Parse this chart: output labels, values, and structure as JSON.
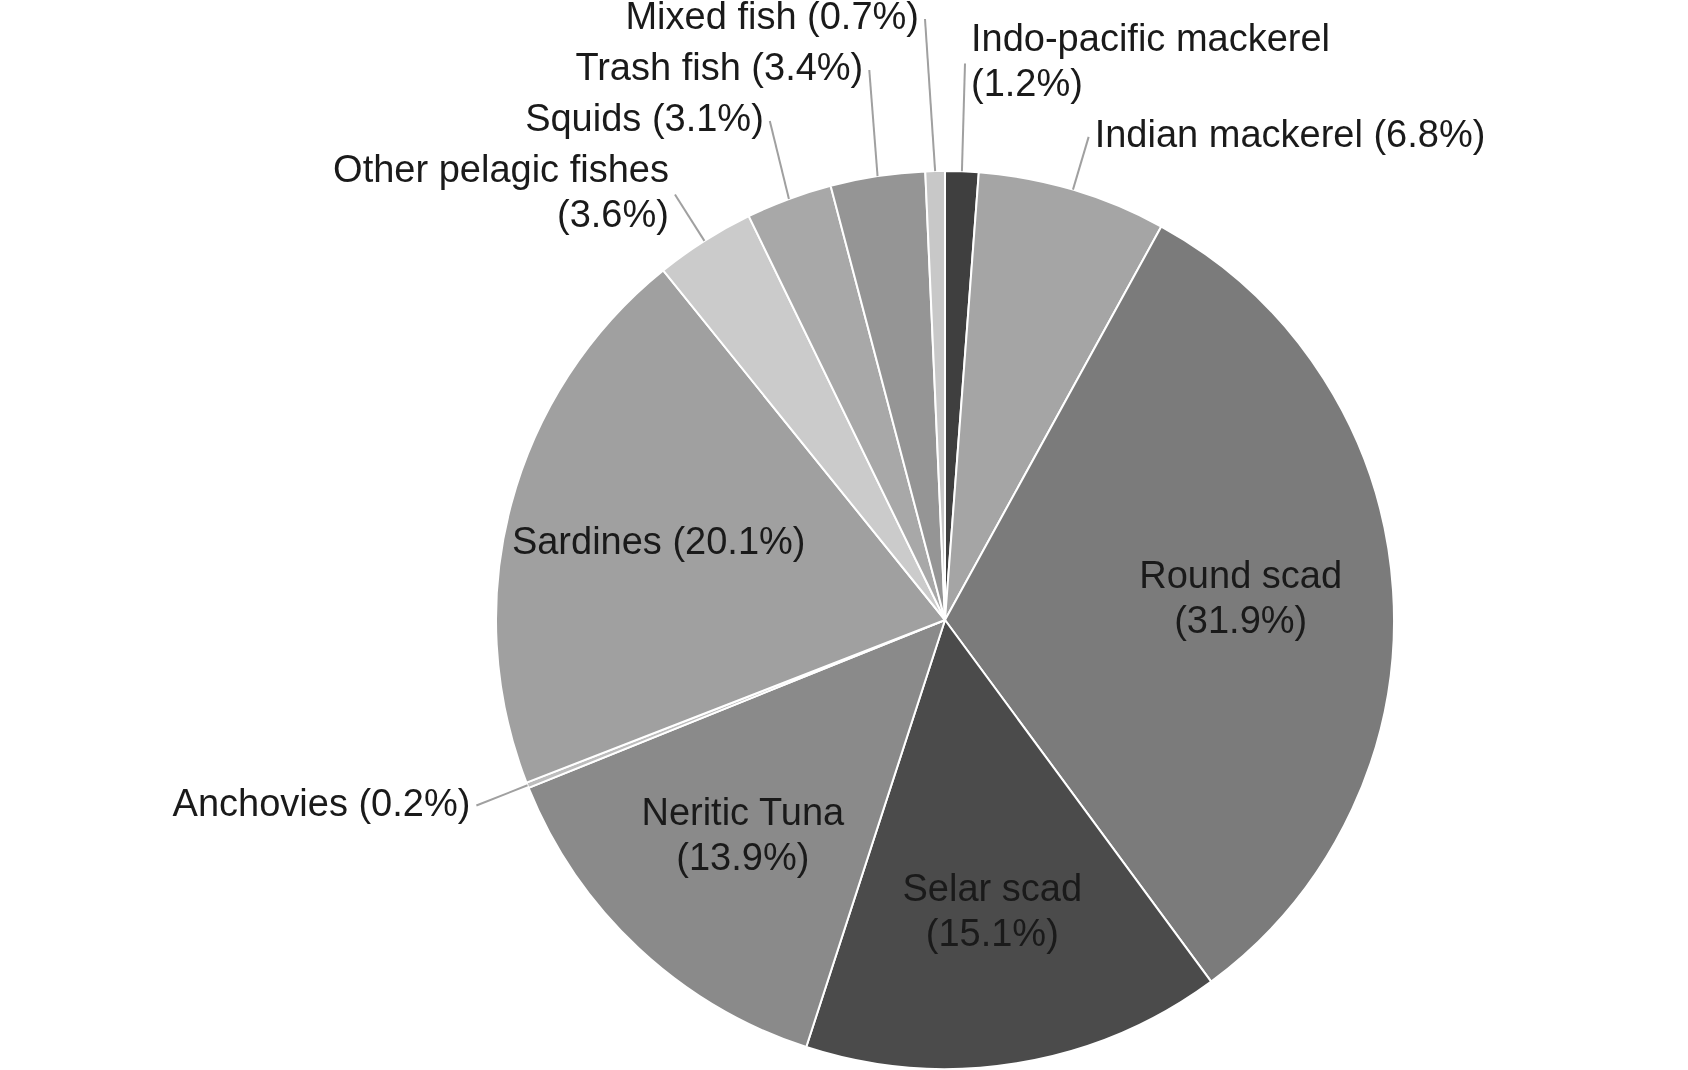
{
  "chart_data": {
    "type": "pie",
    "categories": [
      "Indo-pacific mackerel",
      "Indian mackerel",
      "Round scad",
      "Selar scad",
      "Neritic Tuna",
      "Anchovies",
      "Sardines",
      "Other pelagic fishes",
      "Squids",
      "Trash fish",
      "Mixed fish"
    ],
    "values": [
      1.2,
      6.8,
      31.9,
      15.1,
      13.9,
      0.2,
      20.1,
      3.6,
      3.1,
      3.4,
      0.7
    ],
    "value_labels": [
      "(1.2%)",
      "(6.8%)",
      "(31.9%)",
      "(15.1%)",
      "(13.9%)",
      "(0.2%)",
      "(20.1%)",
      "(3.6%)",
      "(3.1%)",
      "(3.4%)",
      "(0.7%)"
    ],
    "colors": [
      "#3f3f3f",
      "#a5a5a5",
      "#7b7b7b",
      "#4b4b4b",
      "#8a8a8a",
      "#bdbdbd",
      "#a0a0a0",
      "#cbcbcb",
      "#a8a8a8",
      "#959595",
      "#c8c8c8"
    ],
    "legend": false
  }
}
